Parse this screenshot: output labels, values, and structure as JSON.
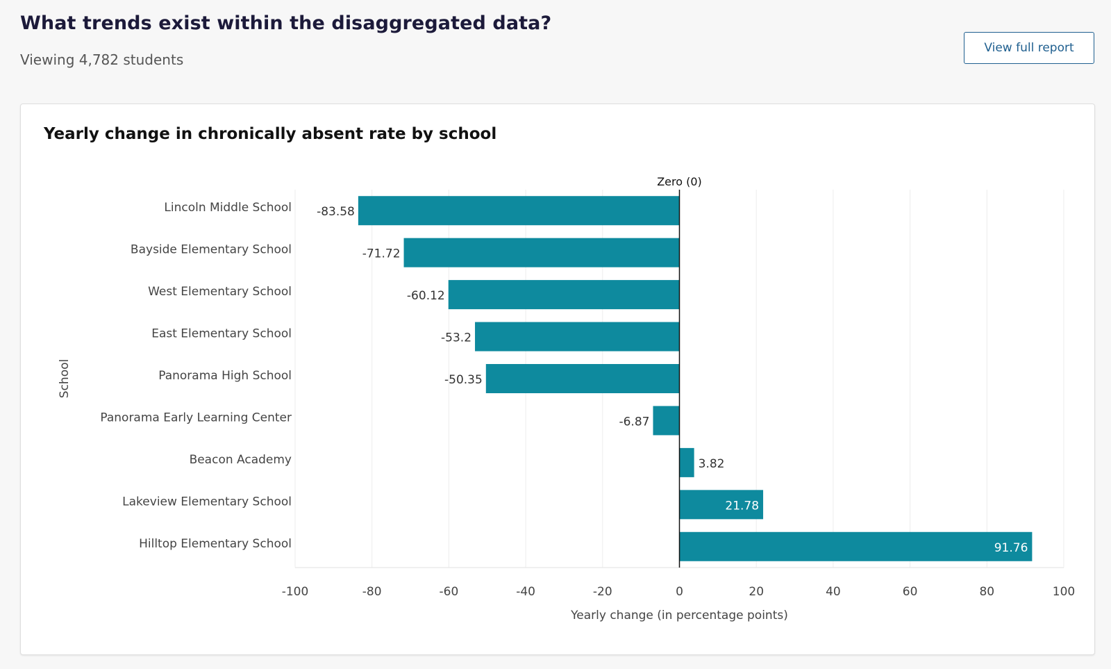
{
  "header": {
    "title": "What trends exist within the disaggregated data?",
    "subtitle": "Viewing 4,782 students",
    "report_button_label": "View full report"
  },
  "chart_data": {
    "type": "bar",
    "orientation": "horizontal",
    "title": "Yearly change in chronically absent rate by school",
    "xlabel": "Yearly change (in percentage points)",
    "ylabel": "School",
    "xlim": [
      -100,
      100
    ],
    "xticks": [
      "-100",
      "-80",
      "-60",
      "-40",
      "-20",
      "0",
      "20",
      "40",
      "60",
      "80",
      "100"
    ],
    "reference_line_label": "Zero (0)",
    "grid": true,
    "bar_color": "#0e8a9e",
    "categories": [
      "Lincoln Middle School",
      "Bayside Elementary School",
      "West Elementary School",
      "East Elementary School",
      "Panorama High School",
      "Panorama Early Learning Center",
      "Beacon Academy",
      "Lakeview Elementary School",
      "Hilltop Elementary School"
    ],
    "values": [
      -83.58,
      -71.72,
      -60.12,
      -53.2,
      -50.35,
      -6.87,
      3.82,
      21.78,
      91.76
    ],
    "value_labels": [
      "-83.58",
      "-71.72",
      "-60.12",
      "-53.2",
      "-50.35",
      "-6.87",
      "3.82",
      "21.78",
      "91.76"
    ]
  }
}
